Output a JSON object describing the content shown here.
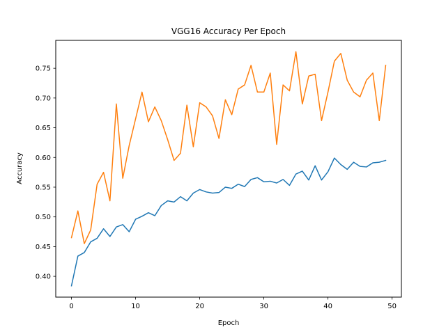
{
  "chart_data": {
    "type": "line",
    "title": "VGG16 Accuracy Per Epoch",
    "xlabel": "Epoch",
    "ylabel": "Accuracy",
    "xlim": [
      -2.45,
      51.45
    ],
    "ylim": [
      0.365,
      0.797
    ],
    "xticks": [
      0,
      10,
      20,
      30,
      40,
      50
    ],
    "yticks": [
      0.4,
      0.45,
      0.5,
      0.55,
      0.6,
      0.65,
      0.7,
      0.75
    ],
    "ytick_labels": [
      "0.40",
      "0.45",
      "0.50",
      "0.55",
      "0.60",
      "0.65",
      "0.70",
      "0.75"
    ],
    "grid": false,
    "legend": "none",
    "x": [
      0,
      1,
      2,
      3,
      4,
      5,
      6,
      7,
      8,
      9,
      10,
      11,
      12,
      13,
      14,
      15,
      16,
      17,
      18,
      19,
      20,
      21,
      22,
      23,
      24,
      25,
      26,
      27,
      28,
      29,
      30,
      31,
      32,
      33,
      34,
      35,
      36,
      37,
      38,
      39,
      40,
      41,
      42,
      43,
      44,
      45,
      46,
      47,
      48,
      49
    ],
    "series": [
      {
        "color": "#1f77b4",
        "values": [
          0.384,
          0.434,
          0.44,
          0.458,
          0.464,
          0.48,
          0.467,
          0.483,
          0.487,
          0.475,
          0.496,
          0.501,
          0.507,
          0.502,
          0.519,
          0.527,
          0.525,
          0.534,
          0.527,
          0.54,
          0.546,
          0.542,
          0.54,
          0.541,
          0.55,
          0.548,
          0.555,
          0.551,
          0.563,
          0.566,
          0.559,
          0.56,
          0.557,
          0.563,
          0.553,
          0.572,
          0.577,
          0.562,
          0.586,
          0.562,
          0.576,
          0.599,
          0.588,
          0.58,
          0.592,
          0.585,
          0.584,
          0.591,
          0.592,
          0.595
        ]
      },
      {
        "color": "#ff7f0e",
        "values": [
          0.465,
          0.51,
          0.455,
          0.478,
          0.555,
          0.575,
          0.527,
          0.69,
          0.565,
          0.62,
          0.665,
          0.71,
          0.66,
          0.685,
          0.662,
          0.63,
          0.595,
          0.607,
          0.688,
          0.618,
          0.692,
          0.685,
          0.67,
          0.632,
          0.697,
          0.672,
          0.715,
          0.722,
          0.755,
          0.71,
          0.71,
          0.742,
          0.622,
          0.722,
          0.712,
          0.778,
          0.69,
          0.737,
          0.74,
          0.662,
          0.71,
          0.762,
          0.775,
          0.73,
          0.71,
          0.702,
          0.73,
          0.742,
          0.662,
          0.755
        ]
      }
    ]
  }
}
